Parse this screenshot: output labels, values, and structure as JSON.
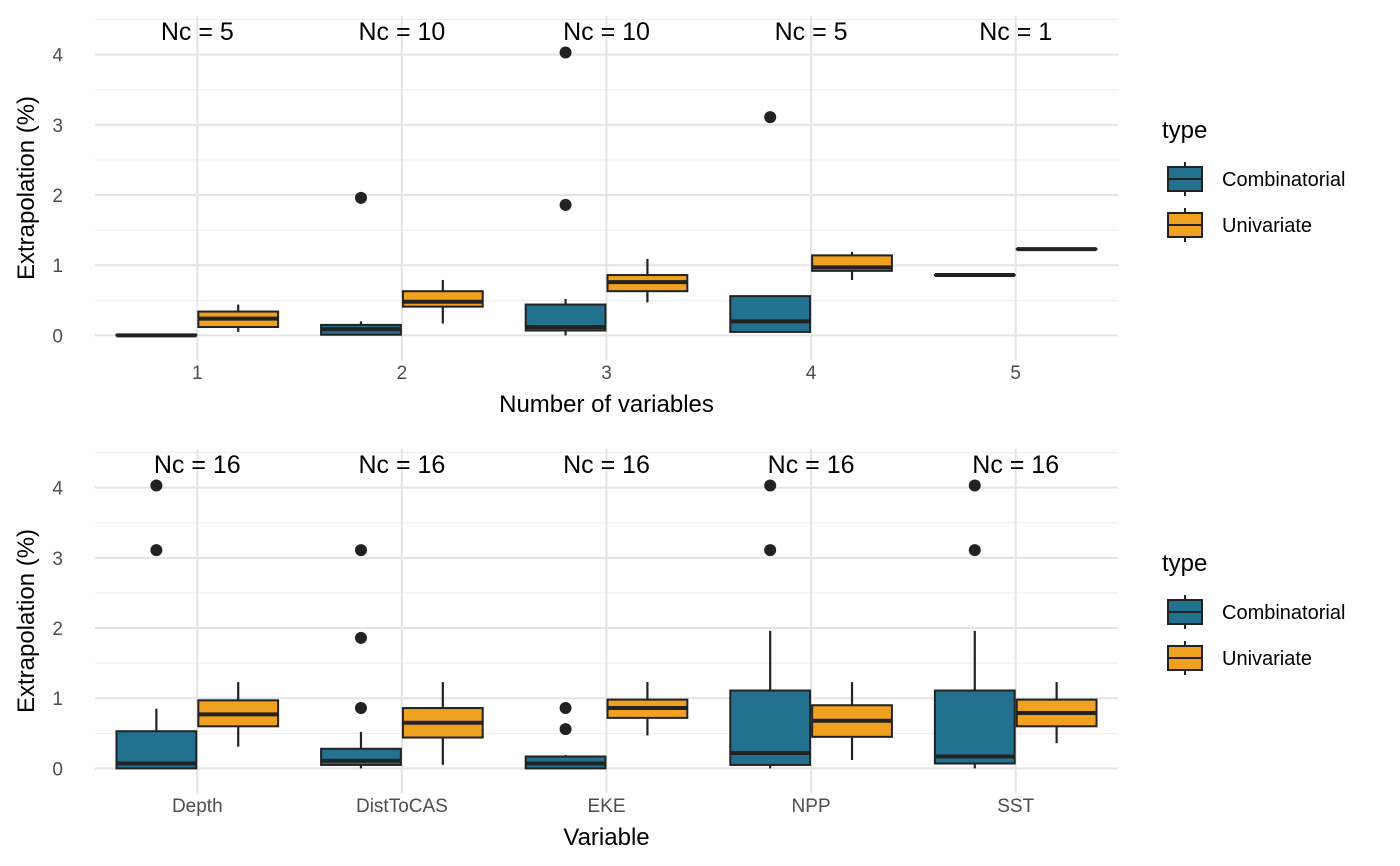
{
  "chart_data": [
    {
      "type": "boxplot",
      "title": "",
      "xlabel": "Number of variables",
      "ylabel": "Extrapolation (%)",
      "ylim": [
        -0.35,
        4.55
      ],
      "yticks": [
        0,
        1,
        2,
        3,
        4
      ],
      "grid": true,
      "legend_position": "right",
      "legend_title": "type",
      "categories": [
        "1",
        "2",
        "3",
        "4",
        "5"
      ],
      "annotations": [
        "Nc = 5",
        "Nc = 10",
        "Nc = 10",
        "Nc = 5",
        "Nc = 1"
      ],
      "series": [
        {
          "name": "Combinatorial",
          "color": "#21718f",
          "boxes": [
            {
              "min": 0.0,
              "q1": 0.0,
              "median": 0.0,
              "q3": 0.01,
              "max": 0.02,
              "outliers": []
            },
            {
              "min": 0.0,
              "q1": 0.01,
              "median": 0.09,
              "q3": 0.15,
              "max": 0.2,
              "outliers": [
                1.96
              ]
            },
            {
              "min": 0.0,
              "q1": 0.07,
              "median": 0.12,
              "q3": 0.44,
              "max": 0.52,
              "outliers": [
                1.86,
                4.03
              ]
            },
            {
              "min": 0.05,
              "q1": 0.05,
              "median": 0.2,
              "q3": 0.56,
              "max": 0.56,
              "outliers": [
                3.11
              ]
            },
            {
              "min": 0.86,
              "q1": 0.86,
              "median": 0.86,
              "q3": 0.86,
              "max": 0.86,
              "outliers": []
            }
          ]
        },
        {
          "name": "Univariate",
          "color": "#efa11f",
          "boxes": [
            {
              "min": 0.05,
              "q1": 0.12,
              "median": 0.24,
              "q3": 0.34,
              "max": 0.44,
              "outliers": []
            },
            {
              "min": 0.17,
              "q1": 0.41,
              "median": 0.48,
              "q3": 0.63,
              "max": 0.79,
              "outliers": []
            },
            {
              "min": 0.47,
              "q1": 0.63,
              "median": 0.76,
              "q3": 0.86,
              "max": 1.09,
              "outliers": []
            },
            {
              "min": 0.79,
              "q1": 0.92,
              "median": 0.97,
              "q3": 1.14,
              "max": 1.19,
              "outliers": []
            },
            {
              "min": 1.23,
              "q1": 1.23,
              "median": 1.23,
              "q3": 1.23,
              "max": 1.23,
              "outliers": []
            }
          ]
        }
      ]
    },
    {
      "type": "boxplot",
      "title": "",
      "xlabel": "Variable",
      "ylabel": "Extrapolation (%)",
      "ylim": [
        -0.35,
        4.55
      ],
      "yticks": [
        0,
        1,
        2,
        3,
        4
      ],
      "grid": true,
      "legend_position": "right",
      "legend_title": "type",
      "categories": [
        "Depth",
        "DistToCAS",
        "EKE",
        "NPP",
        "SST"
      ],
      "annotations": [
        "Nc = 16",
        "Nc = 16",
        "Nc = 16",
        "Nc = 16",
        "Nc = 16"
      ],
      "series": [
        {
          "name": "Combinatorial",
          "color": "#21718f",
          "boxes": [
            {
              "min": 0.0,
              "q1": 0.0,
              "median": 0.07,
              "q3": 0.53,
              "max": 0.85,
              "outliers": [
                3.11,
                4.03
              ]
            },
            {
              "min": 0.0,
              "q1": 0.05,
              "median": 0.11,
              "q3": 0.28,
              "max": 0.52,
              "outliers": [
                0.86,
                1.86,
                3.11
              ]
            },
            {
              "min": 0.0,
              "q1": 0.0,
              "median": 0.07,
              "q3": 0.17,
              "max": 0.19,
              "outliers": [
                0.56,
                0.86
              ]
            },
            {
              "min": 0.0,
              "q1": 0.05,
              "median": 0.22,
              "q3": 1.11,
              "max": 1.96,
              "outliers": [
                3.11,
                4.03
              ]
            },
            {
              "min": 0.0,
              "q1": 0.07,
              "median": 0.17,
              "q3": 1.11,
              "max": 1.96,
              "outliers": [
                3.11,
                4.03
              ]
            }
          ]
        },
        {
          "name": "Univariate",
          "color": "#efa11f",
          "boxes": [
            {
              "min": 0.31,
              "q1": 0.6,
              "median": 0.77,
              "q3": 0.97,
              "max": 1.23,
              "outliers": []
            },
            {
              "min": 0.05,
              "q1": 0.44,
              "median": 0.65,
              "q3": 0.86,
              "max": 1.23,
              "outliers": []
            },
            {
              "min": 0.47,
              "q1": 0.72,
              "median": 0.86,
              "q3": 0.98,
              "max": 1.23,
              "outliers": []
            },
            {
              "min": 0.12,
              "q1": 0.45,
              "median": 0.68,
              "q3": 0.9,
              "max": 1.23,
              "outliers": []
            },
            {
              "min": 0.36,
              "q1": 0.6,
              "median": 0.79,
              "q3": 0.98,
              "max": 1.23,
              "outliers": []
            }
          ]
        }
      ]
    }
  ]
}
